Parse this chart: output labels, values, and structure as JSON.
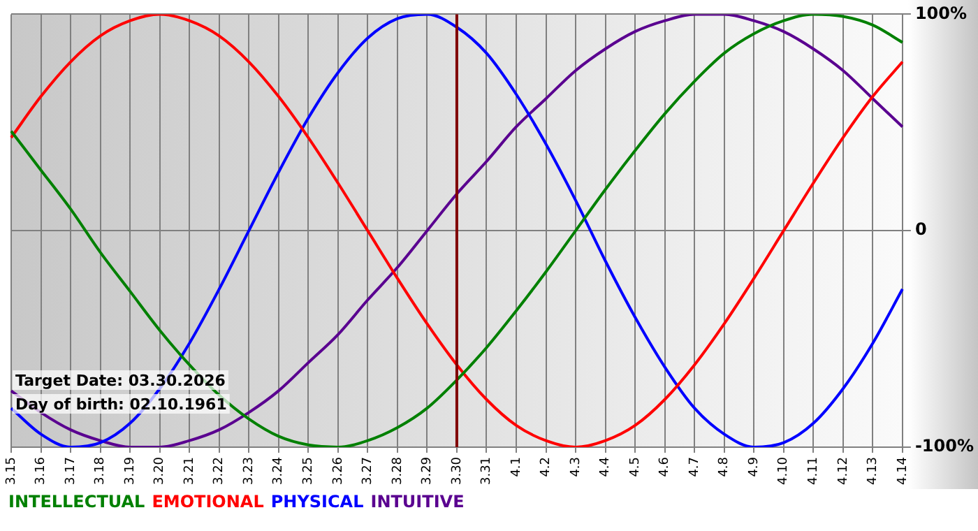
{
  "chart_data": {
    "type": "line",
    "categories": [
      "3.15",
      "3.16",
      "3.17",
      "3.18",
      "3.19",
      "3.20",
      "3.21",
      "3.22",
      "3.23",
      "3.24",
      "3.25",
      "3.26",
      "3.27",
      "3.28",
      "3.29",
      "3.30",
      "3.31",
      "4.1",
      "4.2",
      "4.3",
      "4.4",
      "4.5",
      "4.6",
      "4.7",
      "4.8",
      "4.9",
      "4.10",
      "4.11",
      "4.12",
      "4.13",
      "4.14"
    ],
    "series": [
      {
        "name": "INTELLECTUAL",
        "color": "#008000",
        "values": [
          46,
          28,
          10,
          -10,
          -28,
          -46,
          -62,
          -76,
          -87,
          -95,
          -99,
          -100,
          -97,
          -91,
          -82,
          -69,
          -54,
          -37,
          -19,
          0,
          19,
          37,
          54,
          69,
          82,
          91,
          97,
          100,
          99,
          95,
          87
        ]
      },
      {
        "name": "EMOTIONAL",
        "color": "#ff0000",
        "values": [
          43,
          62,
          78,
          90,
          97,
          100,
          97,
          90,
          78,
          62,
          43,
          22,
          0,
          -22,
          -43,
          -62,
          -78,
          -90,
          -97,
          -100,
          -97,
          -90,
          -78,
          -62,
          -43,
          -22,
          0,
          22,
          43,
          62,
          78
        ]
      },
      {
        "name": "PHYSICAL",
        "color": "#0000ff",
        "values": [
          -82,
          -94,
          -100,
          -98,
          -89,
          -73,
          -52,
          -27,
          0,
          27,
          52,
          73,
          89,
          98,
          100,
          94,
          82,
          63,
          40,
          14,
          -14,
          -40,
          -63,
          -82,
          -94,
          -100,
          -98,
          -89,
          -73,
          -52,
          -27
        ]
      },
      {
        "name": "INTUITIVE",
        "color": "#5a0090",
        "values": [
          -74,
          -84,
          -92,
          -97,
          -100,
          -100,
          -97,
          -92,
          -84,
          -74,
          -61,
          -48,
          -32,
          -17,
          0,
          17,
          32,
          48,
          61,
          74,
          84,
          92,
          97,
          100,
          100,
          97,
          92,
          84,
          74,
          61,
          48
        ]
      }
    ],
    "ylim": [
      -100,
      100
    ],
    "yticks": [
      {
        "value": 100,
        "label": "100%"
      },
      0,
      {
        "value": -100,
        "label": "-100%"
      }
    ],
    "grid": true,
    "legend": "bottom",
    "marker": "none",
    "line_style": "solid",
    "ref_lines": [
      {
        "axis": "x",
        "value": "3.30",
        "color": "#800000"
      }
    ],
    "annotations": [
      "Target Date: 03.30.2026",
      "Day of birth: 02.10.1961"
    ]
  }
}
